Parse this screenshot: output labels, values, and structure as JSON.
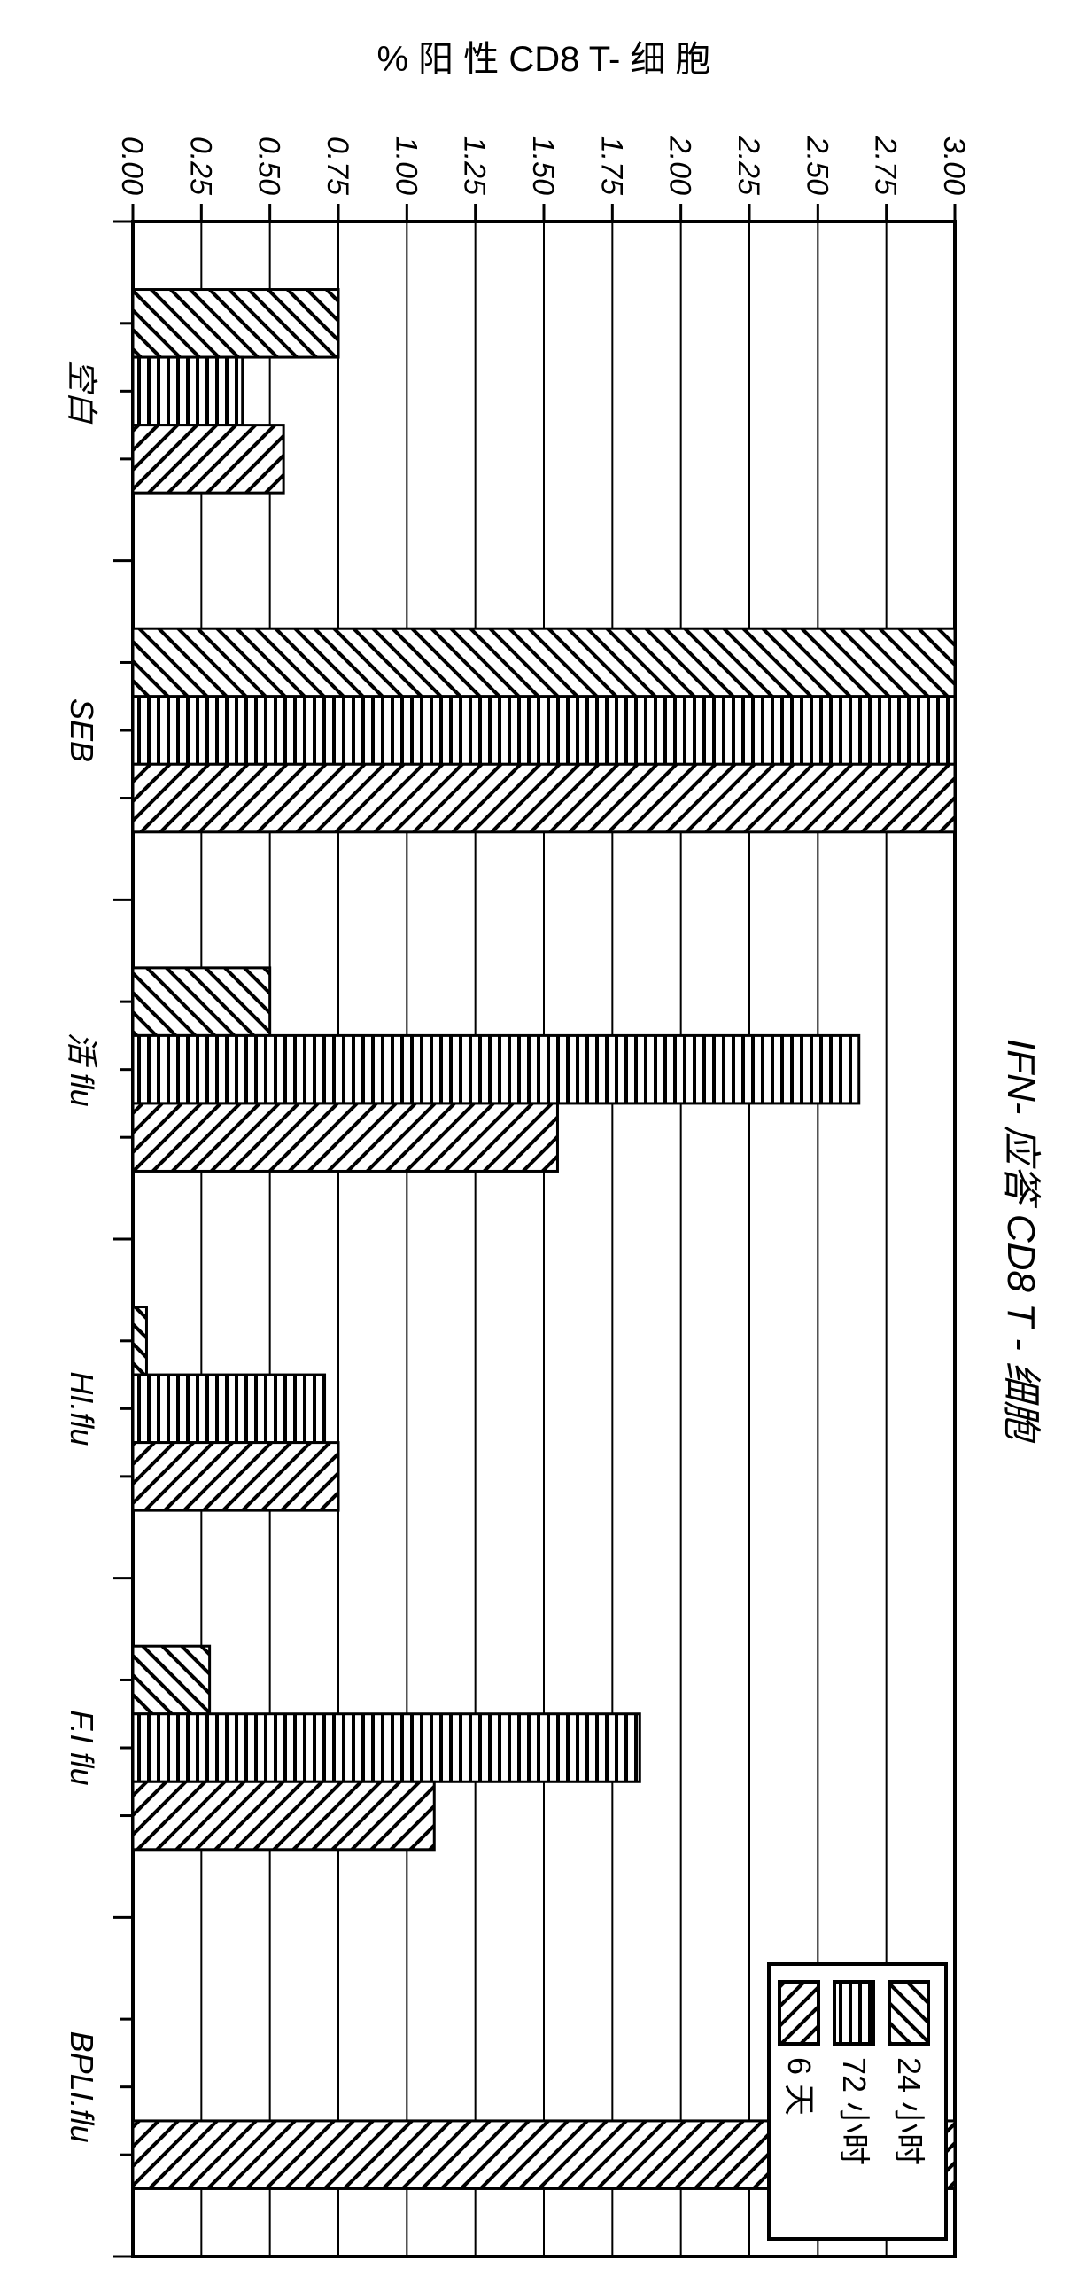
{
  "chart": {
    "type": "bar_grouped_rotated",
    "title": "IFN- 应答  CD8 T -  细胞",
    "title_fontsize": 44,
    "title_fontstyle": "italic",
    "axis_label": "% 阳 性 CD8 T- 细 胞",
    "axis_label_fontsize": 40,
    "background_color": "#ffffff",
    "border_color": "#000000",
    "grid_color": "#000000",
    "ylim": [
      0.0,
      3.0
    ],
    "ytick_step": 0.25,
    "ytick_labels": [
      "0.00",
      "0.25",
      "0.50",
      "0.75",
      "1.00",
      "1.25",
      "1.50",
      "1.75",
      "2.00",
      "2.25",
      "2.50",
      "2.75",
      "3.00"
    ],
    "tick_fontsize": 34,
    "tick_fontstyle": "italic",
    "cat_fontsize": 36,
    "cat_fontstyle": "italic",
    "categories": [
      "空白",
      "SEB",
      "活 flu",
      "HI.flu",
      "F.I flu",
      "BPLI.flu"
    ],
    "legend": {
      "items": [
        {
          "label": "24 小时",
          "pattern": "diag45"
        },
        {
          "label": "72 小时",
          "pattern": "horiz"
        },
        {
          "label": "6  天",
          "pattern": "diag135"
        }
      ],
      "fontsize": 36,
      "box_stroke": "#000000"
    },
    "series": {
      "s24": {
        "pattern": "diag45",
        "values": [
          0.75,
          3.0,
          0.5,
          0.05,
          0.28,
          0.0
        ]
      },
      "s72": {
        "pattern": "horiz",
        "values": [
          0.4,
          3.0,
          2.65,
          0.7,
          1.85,
          0.0
        ]
      },
      "s6d": {
        "pattern": "diag135",
        "values": [
          0.55,
          3.0,
          1.55,
          0.75,
          1.1,
          3.0
        ]
      }
    },
    "bar_fill": "#ffffff",
    "bar_stroke": "#000000",
    "bar_stroke_width": 3,
    "plot_area_stroke_width": 4,
    "pattern_stroke": "#000000",
    "pattern_stroke_width": 4,
    "group_inner_count": 3
  }
}
